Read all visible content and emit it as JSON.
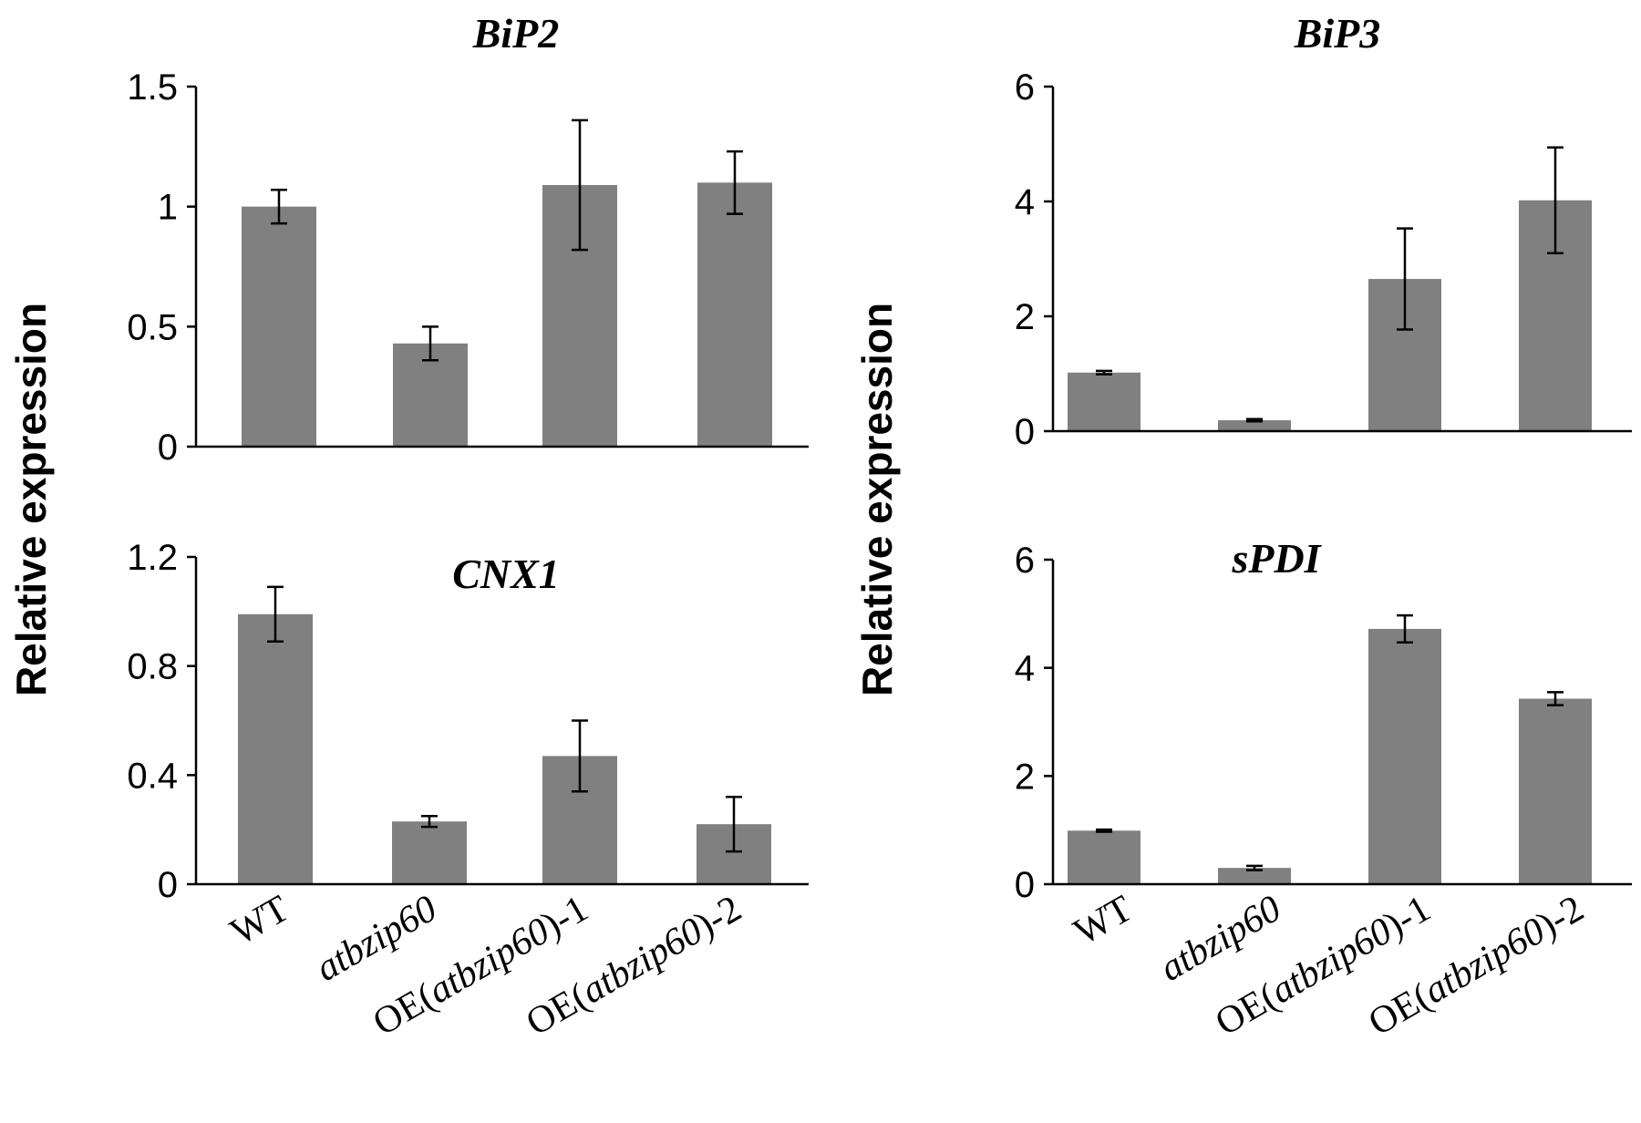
{
  "chart_data": [
    {
      "type": "bar",
      "title": "BiP2",
      "categories": [
        "WT",
        "atbzip60",
        "OE(atbzip60)-1",
        "OE(atbzip60)-2"
      ],
      "values": [
        1.0,
        0.43,
        1.09,
        1.1
      ],
      "errors": [
        0.07,
        0.07,
        0.27,
        0.13
      ],
      "ylim": [
        0,
        1.5
      ],
      "yticks": [
        0,
        0.5,
        1,
        1.5
      ],
      "ytick_labels": [
        "0",
        "0.5",
        "1",
        "1.5"
      ],
      "ylabel": "Relative expression",
      "bar_color": "#808080"
    },
    {
      "type": "bar",
      "title": "BiP3",
      "categories": [
        "WT",
        "atbzip60",
        "OE(atbzip60)-1",
        "OE(atbzip60)-2"
      ],
      "values": [
        1.02,
        0.19,
        2.65,
        4.02
      ],
      "errors": [
        0.03,
        0.02,
        0.88,
        0.92
      ],
      "ylim": [
        0,
        6
      ],
      "yticks": [
        0,
        2,
        4,
        6
      ],
      "ytick_labels": [
        "0",
        "2",
        "4",
        "6"
      ],
      "ylabel": "Relative expression",
      "bar_color": "#808080"
    },
    {
      "type": "bar",
      "title": "CNX1",
      "categories": [
        "WT",
        "atbzip60",
        "OE(atbzip60)-1",
        "OE(atbzip60)-2"
      ],
      "values": [
        0.99,
        0.23,
        0.47,
        0.22
      ],
      "errors": [
        0.1,
        0.02,
        0.13,
        0.1
      ],
      "ylim": [
        0,
        1.2
      ],
      "yticks": [
        0,
        0.4,
        0.8,
        1.2
      ],
      "ytick_labels": [
        "0",
        "0.4",
        "0.8",
        "1.2"
      ],
      "ylabel": "Relative expression",
      "bar_color": "#808080"
    },
    {
      "type": "bar",
      "title": "sPDI",
      "categories": [
        "WT",
        "atbzip60",
        "OE(atbzip60)-1",
        "OE(atbzip60)-2"
      ],
      "values": [
        0.99,
        0.3,
        4.72,
        3.43
      ],
      "errors": [
        0.02,
        0.04,
        0.25,
        0.12
      ],
      "ylim": [
        0,
        6
      ],
      "yticks": [
        0,
        2,
        4,
        6
      ],
      "ytick_labels": [
        "0",
        "2",
        "4",
        "6"
      ],
      "ylabel": "Relative expression",
      "bar_color": "#808080"
    }
  ],
  "ylabel": "Relative expression",
  "x_labels": {
    "wt": "WT",
    "mutant": "atbzip60",
    "oe1_prefix": "OE(",
    "oe1_gene": "atbzip60",
    "oe1_suffix": ")-1",
    "oe2_prefix": "OE(",
    "oe2_gene": "atbzip60",
    "oe2_suffix": ")-2"
  }
}
